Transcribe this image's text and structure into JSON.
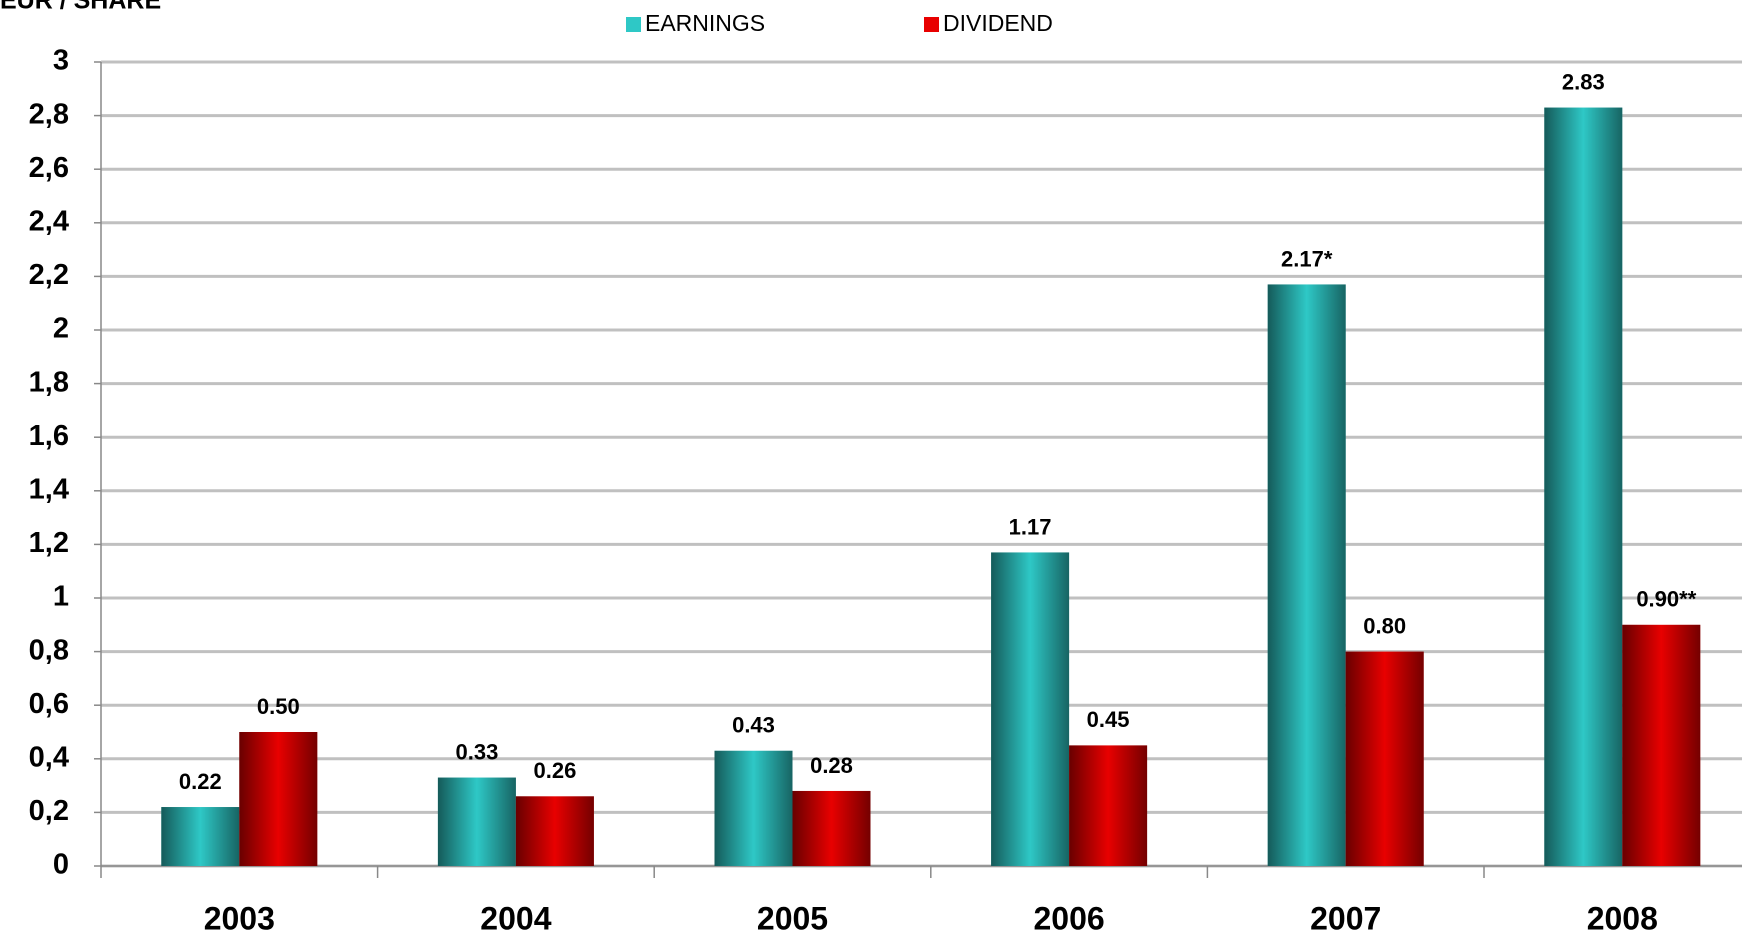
{
  "chart_data": {
    "type": "bar",
    "y_axis_label": "EUR / SHARE",
    "categories": [
      "2003",
      "2004",
      "2005",
      "2006",
      "2007",
      "2008"
    ],
    "series": [
      {
        "name": "EARNINGS",
        "color": "#2ec8c6",
        "values": [
          0.22,
          0.33,
          0.43,
          1.17,
          2.17,
          2.83
        ],
        "value_labels": [
          "0.22",
          "0.33",
          "0.43",
          "1.17",
          "2.17*",
          "2.83"
        ]
      },
      {
        "name": "DIVIDEND",
        "color": "#e80000",
        "values": [
          0.5,
          0.26,
          0.28,
          0.45,
          0.8,
          0.9
        ],
        "value_labels": [
          "0.50",
          "0.26",
          "0.28",
          "0.45",
          "0.80",
          "0.90**"
        ]
      }
    ],
    "ylim": [
      0,
      3
    ],
    "yticks": [
      0,
      {
        "value": 0.2,
        "label": "0,2"
      },
      {
        "value": 0.4,
        "label": "0,4"
      },
      {
        "value": 0.6,
        "label": "0,6"
      },
      {
        "value": 0.8,
        "label": "0,8"
      },
      1,
      {
        "value": 1.2,
        "label": "1,2"
      },
      {
        "value": 1.4,
        "label": "1,4"
      },
      {
        "value": 1.6,
        "label": "1,6"
      },
      {
        "value": 1.8,
        "label": "1,8"
      },
      2,
      {
        "value": 2.2,
        "label": "2,2"
      },
      {
        "value": 2.4,
        "label": "2,4"
      },
      {
        "value": 2.6,
        "label": "2,6"
      },
      {
        "value": 2.8,
        "label": "2,8"
      },
      3
    ],
    "grid": true
  }
}
